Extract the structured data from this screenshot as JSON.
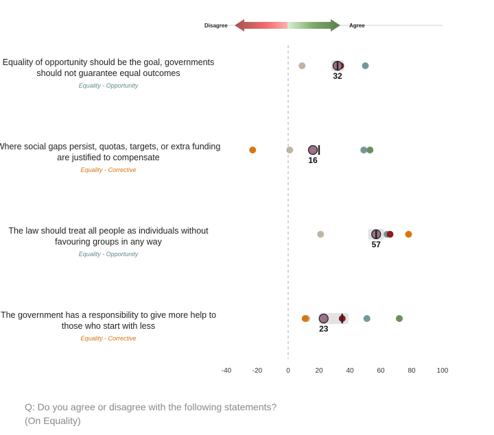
{
  "legend": {
    "disagree": "Disagree",
    "agree": "Agree"
  },
  "question": {
    "line1": "Q: Do you agree or disagree with the following statements?",
    "line2": "(On Equality)"
  },
  "colors": {
    "beige": "#bfb5a3",
    "red": "#8e1b1f",
    "teal": "#73989a",
    "green": "#6b8e5a",
    "orange": "#d9770f",
    "main": "#9a7289",
    "opportunity": "#5f8a8b",
    "corrective": "#d9730d"
  },
  "chart_data": {
    "type": "scatter",
    "title": "",
    "xlabel": "",
    "ylabel": "",
    "xlim": [
      -40,
      100
    ],
    "xticks": [
      "-40",
      "-20",
      "0",
      "20",
      "40",
      "60",
      "80",
      "100"
    ],
    "tick_values": [
      -40,
      -20,
      0,
      20,
      40,
      60,
      80,
      100
    ],
    "rows": [
      {
        "statement_line1": "Equality of opportunity should be the goal, governments",
        "statement_line2": "should not guarantee equal outcomes",
        "category": "Equality - Opportunity",
        "category_color": "opportunity",
        "main": 32,
        "main_label": "32",
        "marker": 32,
        "band": [
          31,
          33
        ],
        "points": [
          {
            "series": "beige",
            "value": 9
          },
          {
            "series": "red",
            "value": 34
          },
          {
            "series": "teal",
            "value": 50
          }
        ]
      },
      {
        "statement_line1": "Where social gaps persist, quotas, targets, or extra funding",
        "statement_line2": "are justified to compensate",
        "category": "Equality - Corrective",
        "category_color": "corrective",
        "main": 16,
        "main_label": "16",
        "marker": 20,
        "band": null,
        "points": [
          {
            "series": "orange",
            "value": -23
          },
          {
            "series": "beige",
            "value": 1
          },
          {
            "series": "teal",
            "value": 49
          },
          {
            "series": "green",
            "value": 53
          }
        ]
      },
      {
        "statement_line1": "The law should treat all people as individuals without",
        "statement_line2": "favouring groups in any way",
        "category": "Equality - Opportunity",
        "category_color": "opportunity",
        "main": 57,
        "main_label": "57",
        "marker": 57,
        "band": [
          55,
          59
        ],
        "points": [
          {
            "series": "beige",
            "value": 21
          },
          {
            "series": "teal",
            "value": 64
          },
          {
            "series": "red",
            "value": 66
          },
          {
            "series": "orange",
            "value": 78
          }
        ]
      },
      {
        "statement_line1": "The government has a responsibility to give more help to",
        "statement_line2": "those who start with less",
        "category": "Equality - Corrective",
        "category_color": "corrective",
        "main": 23,
        "main_label": "23",
        "marker": 35,
        "band": [
          23,
          36
        ],
        "points": [
          {
            "series": "beige",
            "value": 12
          },
          {
            "series": "orange",
            "value": 11
          },
          {
            "series": "red",
            "value": 35
          },
          {
            "series": "teal",
            "value": 51
          },
          {
            "series": "green",
            "value": 72
          }
        ]
      }
    ]
  }
}
